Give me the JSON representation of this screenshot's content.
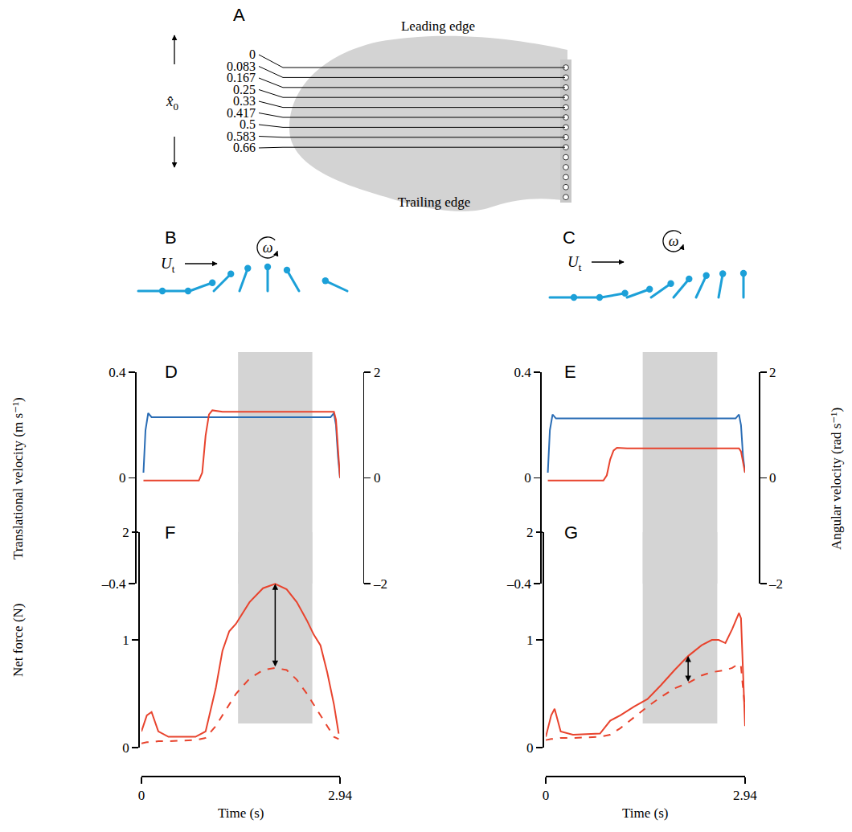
{
  "diagram": {
    "A": {
      "letter": "A",
      "position_symbol": "x̂",
      "position_subscript": "0",
      "positions": [
        "0",
        "0.083",
        "0.167",
        "0.25",
        "0.33",
        "0.417",
        "0.5",
        "0.583",
        "0.66"
      ],
      "leading_edge": "Leading edge",
      "trailing_edge": "Trailing edge"
    },
    "B": {
      "letter": "B",
      "velocity_symbol": "U",
      "velocity_subscript": "t",
      "rotation_symbol": "ω"
    },
    "C": {
      "letter": "C",
      "velocity_symbol": "U",
      "velocity_subscript": "t",
      "rotation_symbol": "ω"
    }
  },
  "chart_data": [
    {
      "panel": "D",
      "type": "line",
      "ylabel": "Translational velocity (m s⁻¹)",
      "xlim": [
        0,
        2.94
      ],
      "ylim": [
        -0.4,
        0.4
      ],
      "yticks": [
        {
          "value": -0.4,
          "label": "–0.4"
        },
        0,
        0.4
      ],
      "y2lim": [
        -2,
        2
      ],
      "y2ticks": [
        {
          "value": -2,
          "label": "–2"
        },
        0,
        2
      ],
      "tick_labels": "y",
      "shaded_interval": [
        1.43,
        2.53
      ],
      "x": [
        0.03,
        0.06,
        0.1,
        0.15,
        0.3,
        0.6,
        0.85,
        0.9,
        0.95,
        1.0,
        1.05,
        1.2,
        1.6,
        2.0,
        2.4,
        2.8,
        2.85,
        2.88,
        2.91,
        2.94
      ],
      "series": [
        {
          "color": "#2a6db5",
          "line_style": "solid",
          "values": [
            0.02,
            0.18,
            0.245,
            0.23,
            0.23,
            0.23,
            0.23,
            0.23,
            0.23,
            0.23,
            0.23,
            0.23,
            0.23,
            0.23,
            0.23,
            0.23,
            0.245,
            0.2,
            0.08,
            0.0
          ]
        },
        {
          "color": "#e8432d",
          "line_style": "solid",
          "axis": "y2",
          "values": [
            -0.05,
            -0.05,
            -0.04,
            -0.05,
            -0.05,
            -0.05,
            -0.05,
            0.1,
            0.8,
            1.2,
            1.28,
            1.25,
            1.25,
            1.25,
            1.25,
            1.25,
            1.25,
            1.1,
            0.5,
            0.0
          ]
        }
      ]
    },
    {
      "panel": "E",
      "type": "line",
      "y2label": "Angular velocity (rad s⁻¹)",
      "xlim": [
        0,
        2.94
      ],
      "ylim": [
        -0.4,
        0.4
      ],
      "yticks": [
        {
          "value": -0.4,
          "label": "–0.4"
        },
        0,
        0.4
      ],
      "y2lim": [
        -2,
        2
      ],
      "y2ticks": [
        {
          "value": -2,
          "label": "–2"
        },
        0,
        2
      ],
      "tick_labels": "y",
      "shaded_interval": [
        1.43,
        2.53
      ],
      "x": [
        0.03,
        0.06,
        0.1,
        0.15,
        0.3,
        0.6,
        0.85,
        0.9,
        0.95,
        1.0,
        1.05,
        1.2,
        1.6,
        2.0,
        2.4,
        2.8,
        2.85,
        2.88,
        2.91,
        2.94
      ],
      "series": [
        {
          "color": "#2a6db5",
          "line_style": "solid",
          "values": [
            0.02,
            0.18,
            0.24,
            0.225,
            0.225,
            0.225,
            0.225,
            0.225,
            0.225,
            0.225,
            0.225,
            0.225,
            0.225,
            0.225,
            0.225,
            0.225,
            0.24,
            0.2,
            0.08,
            0.02
          ]
        },
        {
          "color": "#e8432d",
          "line_style": "solid",
          "axis": "y2",
          "values": [
            -0.05,
            -0.05,
            -0.04,
            -0.05,
            -0.05,
            -0.05,
            -0.05,
            0.05,
            0.35,
            0.52,
            0.57,
            0.56,
            0.56,
            0.56,
            0.56,
            0.56,
            0.56,
            0.5,
            0.3,
            0.1
          ]
        }
      ]
    },
    {
      "panel": "F",
      "type": "line",
      "ylabel": "Net force (N)",
      "xlabel": "Time (s)",
      "xlim": [
        0,
        2.94
      ],
      "xticks": [
        0,
        2.94
      ],
      "ylim": [
        0,
        2
      ],
      "yticks": [
        0,
        1,
        2
      ],
      "shaded_interval": [
        1.43,
        2.53
      ],
      "arrow": {
        "x": 1.98,
        "from": 0.74,
        "to": 1.52
      },
      "x": [
        0,
        0.08,
        0.15,
        0.25,
        0.4,
        0.8,
        0.95,
        1.1,
        1.2,
        1.3,
        1.4,
        1.6,
        1.8,
        1.98,
        2.15,
        2.3,
        2.45,
        2.55,
        2.65,
        2.75,
        2.85,
        2.92
      ],
      "series": [
        {
          "color": "#e8432d",
          "line_style": "solid",
          "values": [
            0.15,
            0.3,
            0.33,
            0.15,
            0.1,
            0.1,
            0.15,
            0.55,
            0.9,
            1.08,
            1.15,
            1.35,
            1.48,
            1.52,
            1.47,
            1.35,
            1.18,
            1.05,
            0.95,
            0.7,
            0.4,
            0.13
          ]
        },
        {
          "color": "#e8432d",
          "line_style": "dashed",
          "values": [
            0.04,
            0.05,
            0.05,
            0.06,
            0.06,
            0.07,
            0.09,
            0.2,
            0.3,
            0.4,
            0.5,
            0.64,
            0.72,
            0.74,
            0.72,
            0.63,
            0.5,
            0.4,
            0.3,
            0.2,
            0.1,
            0.08
          ]
        }
      ]
    },
    {
      "panel": "G",
      "type": "line",
      "xlabel": "Time (s)",
      "xlim": [
        0,
        2.94
      ],
      "xticks": [
        0,
        2.94
      ],
      "ylim": [
        0,
        2
      ],
      "yticks": [
        0,
        1,
        2
      ],
      "shaded_interval": [
        1.43,
        2.53
      ],
      "arrow": {
        "x": 2.1,
        "from": 0.6,
        "to": 0.85
      },
      "x": [
        0,
        0.08,
        0.13,
        0.22,
        0.4,
        0.8,
        0.95,
        1.1,
        1.3,
        1.5,
        1.7,
        1.9,
        2.1,
        2.3,
        2.45,
        2.55,
        2.65,
        2.75,
        2.85,
        2.88,
        2.94
      ],
      "series": [
        {
          "color": "#e8432d",
          "line_style": "solid",
          "values": [
            0.1,
            0.3,
            0.36,
            0.15,
            0.12,
            0.13,
            0.25,
            0.3,
            0.38,
            0.45,
            0.58,
            0.72,
            0.85,
            0.95,
            1.0,
            1.0,
            0.97,
            1.1,
            1.25,
            1.2,
            0.2
          ]
        },
        {
          "color": "#e8432d",
          "line_style": "dashed",
          "values": [
            0.07,
            0.08,
            0.08,
            0.09,
            0.09,
            0.1,
            0.12,
            0.18,
            0.28,
            0.38,
            0.47,
            0.55,
            0.6,
            0.67,
            0.7,
            0.71,
            0.72,
            0.74,
            0.78,
            0.75,
            0.35
          ]
        }
      ]
    }
  ]
}
